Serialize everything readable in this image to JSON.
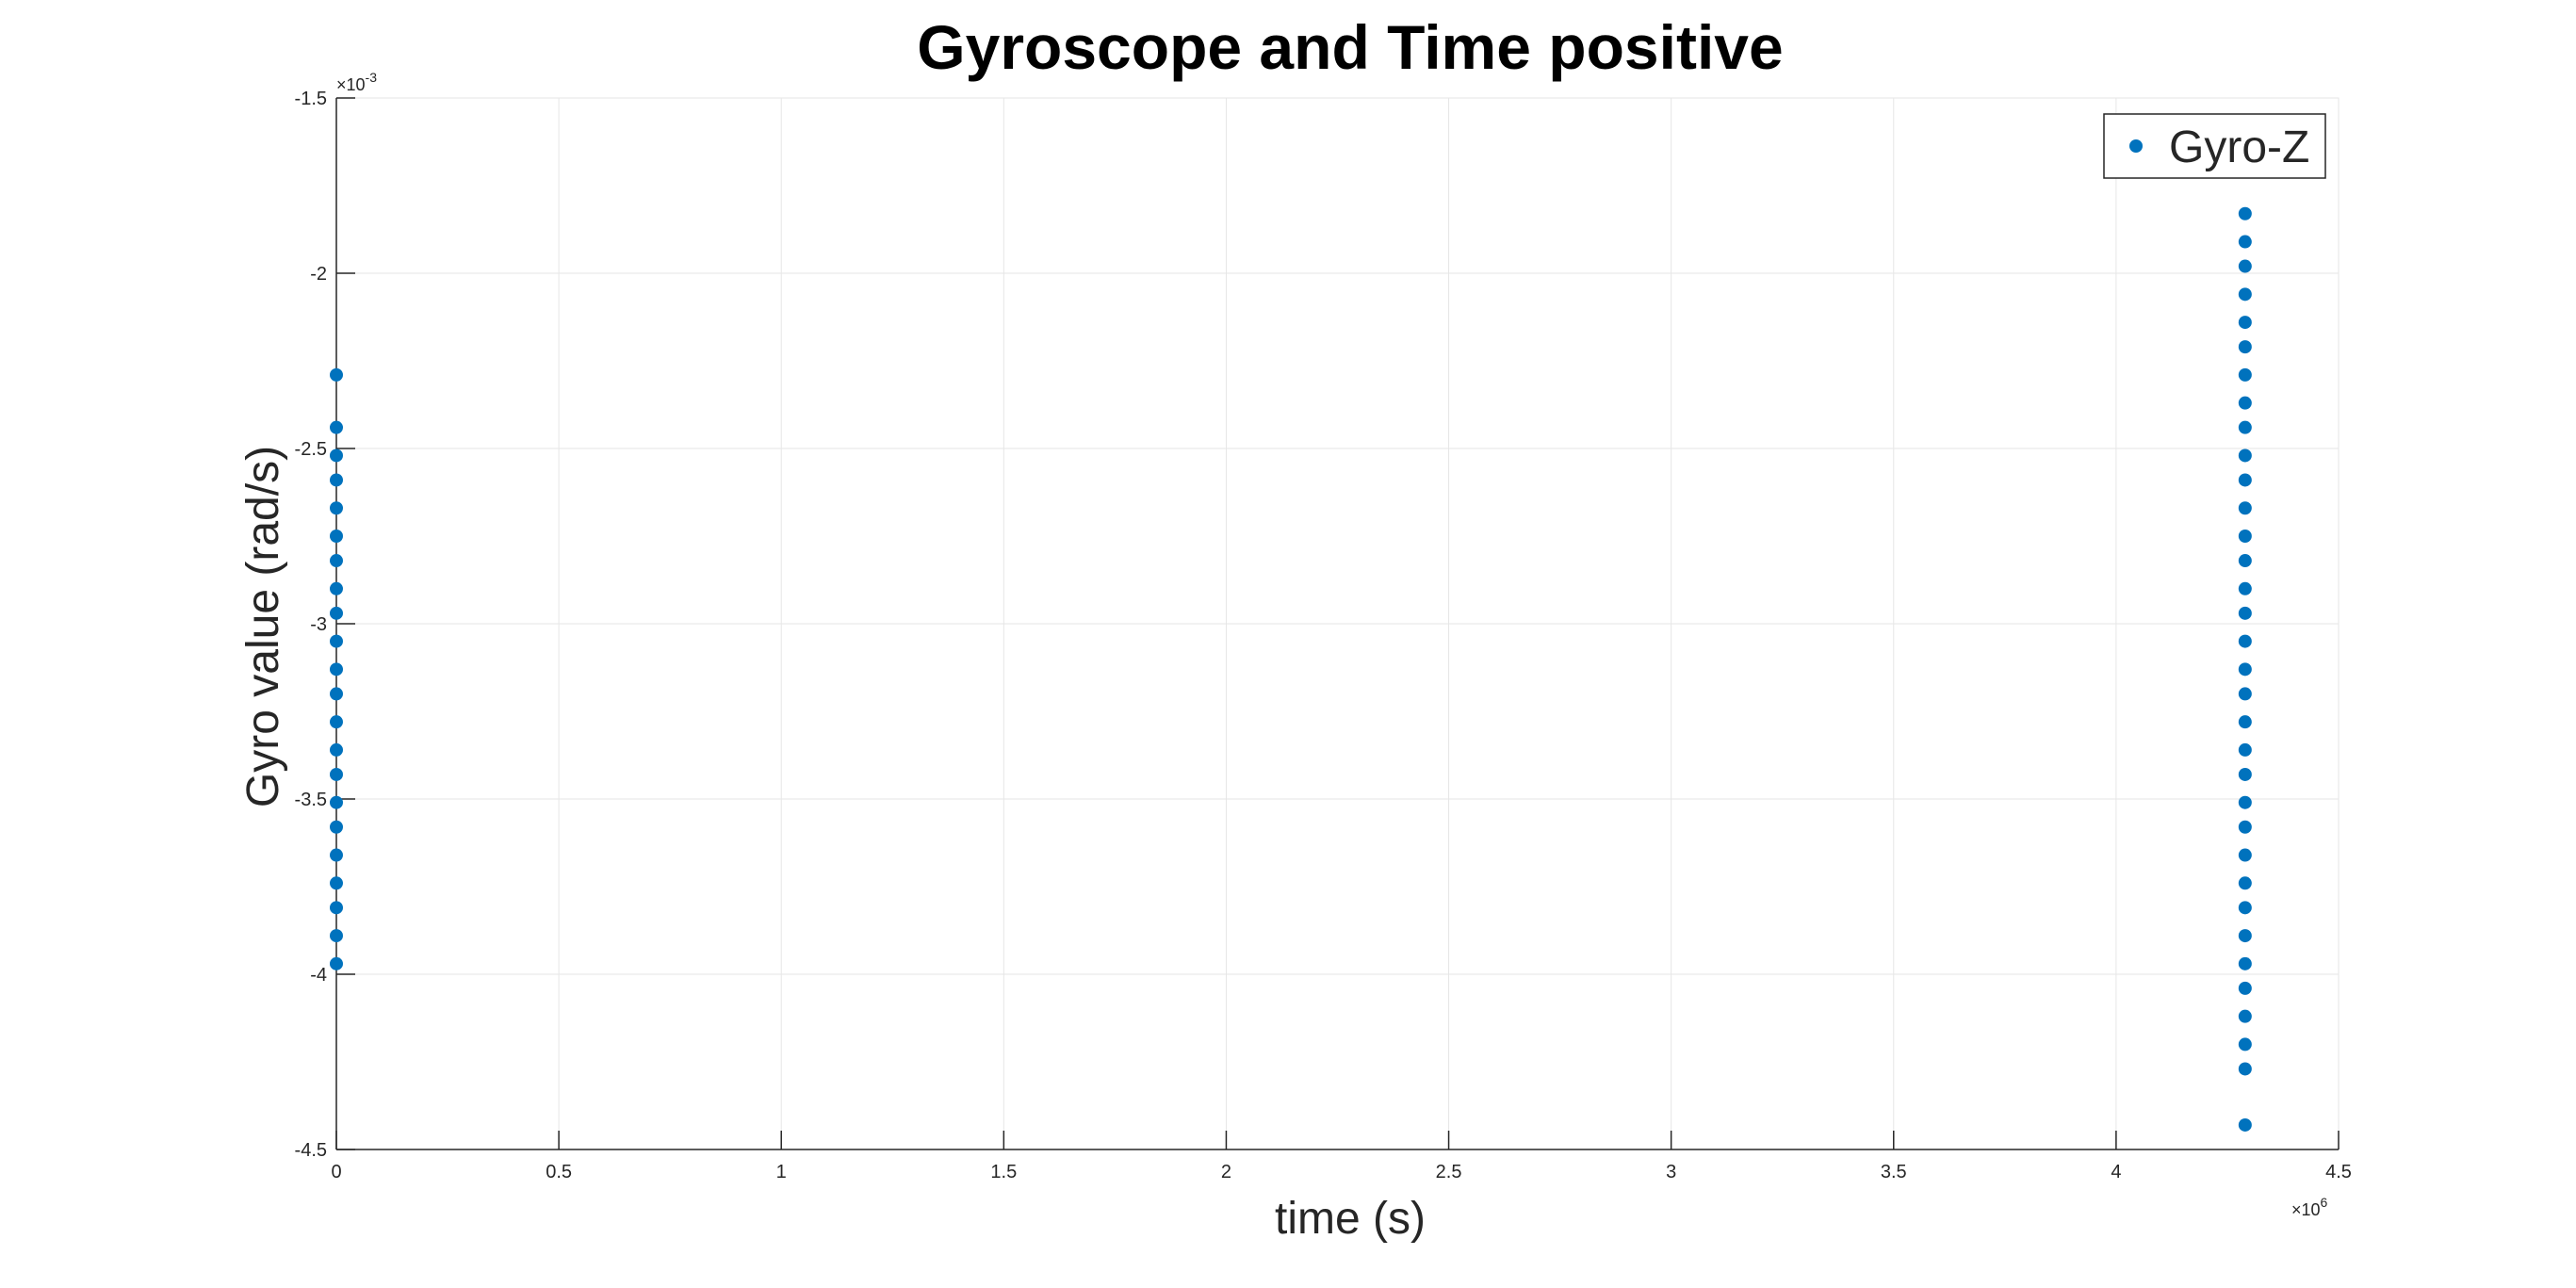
{
  "chart_data": {
    "type": "scatter",
    "title": "Gyroscope and Time positive",
    "xlabel": "time (s)",
    "ylabel": "Gyro value (rad/s)",
    "xlim": [
      0,
      4.5
    ],
    "ylim": [
      -4.5,
      -1.5
    ],
    "x_exponent_label": "×10",
    "x_exponent_power": "6",
    "y_exponent_label": "×10",
    "y_exponent_power": "-3",
    "x_ticks": [
      "0",
      "0.5",
      "1",
      "1.5",
      "2",
      "2.5",
      "3",
      "3.5",
      "4",
      "4.5"
    ],
    "y_ticks": [
      "-1.5",
      "-2",
      "-2.5",
      "-3",
      "-3.5",
      "-4",
      "-4.5"
    ],
    "grid": true,
    "legend_position": "top-right",
    "marker_color": "#0072BD",
    "series": [
      {
        "name": "Gyro-Z",
        "points": [
          {
            "x": 0,
            "y": -2.29
          },
          {
            "x": 0,
            "y": -2.44
          },
          {
            "x": 0,
            "y": -2.52
          },
          {
            "x": 0,
            "y": -2.59
          },
          {
            "x": 0,
            "y": -2.67
          },
          {
            "x": 0,
            "y": -2.75
          },
          {
            "x": 0,
            "y": -2.82
          },
          {
            "x": 0,
            "y": -2.9
          },
          {
            "x": 0,
            "y": -2.97
          },
          {
            "x": 0,
            "y": -3.05
          },
          {
            "x": 0,
            "y": -3.13
          },
          {
            "x": 0,
            "y": -3.2
          },
          {
            "x": 0,
            "y": -3.28
          },
          {
            "x": 0,
            "y": -3.36
          },
          {
            "x": 0,
            "y": -3.43
          },
          {
            "x": 0,
            "y": -3.51
          },
          {
            "x": 0,
            "y": -3.58
          },
          {
            "x": 0,
            "y": -3.66
          },
          {
            "x": 0,
            "y": -3.74
          },
          {
            "x": 0,
            "y": -3.81
          },
          {
            "x": 0,
            "y": -3.89
          },
          {
            "x": 0,
            "y": -3.97
          },
          {
            "x": 4.29,
            "y": -1.83
          },
          {
            "x": 4.29,
            "y": -1.91
          },
          {
            "x": 4.29,
            "y": -1.98
          },
          {
            "x": 4.29,
            "y": -2.06
          },
          {
            "x": 4.29,
            "y": -2.14
          },
          {
            "x": 4.29,
            "y": -2.21
          },
          {
            "x": 4.29,
            "y": -2.29
          },
          {
            "x": 4.29,
            "y": -2.37
          },
          {
            "x": 4.29,
            "y": -2.44
          },
          {
            "x": 4.29,
            "y": -2.52
          },
          {
            "x": 4.29,
            "y": -2.59
          },
          {
            "x": 4.29,
            "y": -2.67
          },
          {
            "x": 4.29,
            "y": -2.75
          },
          {
            "x": 4.29,
            "y": -2.82
          },
          {
            "x": 4.29,
            "y": -2.9
          },
          {
            "x": 4.29,
            "y": -2.97
          },
          {
            "x": 4.29,
            "y": -3.05
          },
          {
            "x": 4.29,
            "y": -3.13
          },
          {
            "x": 4.29,
            "y": -3.2
          },
          {
            "x": 4.29,
            "y": -3.28
          },
          {
            "x": 4.29,
            "y": -3.36
          },
          {
            "x": 4.29,
            "y": -3.43
          },
          {
            "x": 4.29,
            "y": -3.51
          },
          {
            "x": 4.29,
            "y": -3.58
          },
          {
            "x": 4.29,
            "y": -3.66
          },
          {
            "x": 4.29,
            "y": -3.74
          },
          {
            "x": 4.29,
            "y": -3.81
          },
          {
            "x": 4.29,
            "y": -3.89
          },
          {
            "x": 4.29,
            "y": -3.97
          },
          {
            "x": 4.29,
            "y": -4.04
          },
          {
            "x": 4.29,
            "y": -4.12
          },
          {
            "x": 4.29,
            "y": -4.2
          },
          {
            "x": 4.29,
            "y": -4.27
          },
          {
            "x": 4.29,
            "y": -4.43
          }
        ]
      }
    ]
  }
}
